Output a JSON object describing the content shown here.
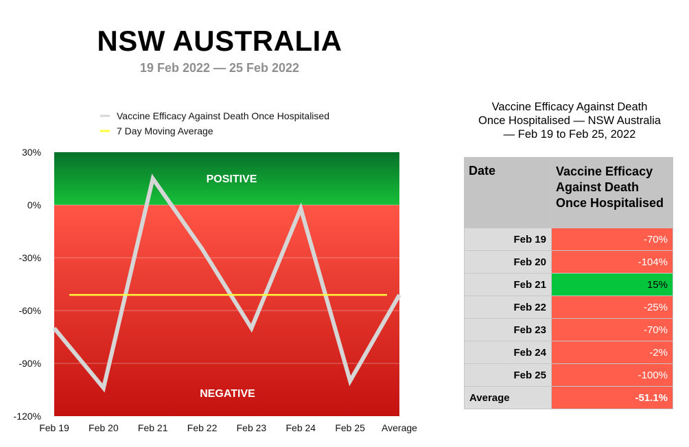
{
  "header": {
    "title": "NSW AUSTRALIA",
    "subtitle": "19 Feb 2022 — 25 Feb 2022"
  },
  "chart_data": {
    "type": "line",
    "categories": [
      "Feb 19",
      "Feb 20",
      "Feb 21",
      "Feb 22",
      "Feb 23",
      "Feb 24",
      "Feb 25",
      "Average"
    ],
    "series": [
      {
        "name": "Vaccine Efficacy Against Death Once Hospitalised",
        "values": [
          -70,
          -104,
          15,
          -25,
          -70,
          -2,
          -100,
          -51.1
        ],
        "color": "#d6d6d6"
      },
      {
        "name": "7 Day Moving Average",
        "values": [
          -51.1,
          -51.1,
          -51.1,
          -51.1,
          -51.1,
          -51.1,
          -51.1,
          -51.1
        ],
        "color": "#ffff3b"
      }
    ],
    "yticks": [
      "30%",
      "0%",
      "-30%",
      "-60%",
      "-90%",
      "-120%"
    ],
    "ylim": [
      -120,
      30
    ],
    "regions": {
      "positive_label": "POSITIVE",
      "negative_label": "NEGATIVE"
    },
    "legend": "top",
    "grid": true,
    "colors": {
      "positive": "#0c9a2b",
      "negative": "#e8352c"
    }
  },
  "table": {
    "title_lines": [
      "Vaccine Efficacy Against Death",
      "Once Hospitalised — NSW Australia",
      "— Feb 19 to Feb 25, 2022"
    ],
    "headers": [
      "Date",
      "Vaccine Efficacy Against Death Once Hospitalised"
    ],
    "rows": [
      {
        "date": "Feb 19",
        "value": "-70%"
      },
      {
        "date": "Feb 20",
        "value": "-104%"
      },
      {
        "date": "Feb 21",
        "value": "15%"
      },
      {
        "date": "Feb 22",
        "value": "-25%"
      },
      {
        "date": "Feb 23",
        "value": "-70%"
      },
      {
        "date": "Feb 24",
        "value": "-2%"
      },
      {
        "date": "Feb 25",
        "value": "-100%"
      }
    ],
    "average": {
      "label": "Average",
      "value": "-51.1%"
    },
    "colors": {
      "positive_cell": "#05c53c",
      "negative_cell": "#ff5e4c"
    }
  }
}
